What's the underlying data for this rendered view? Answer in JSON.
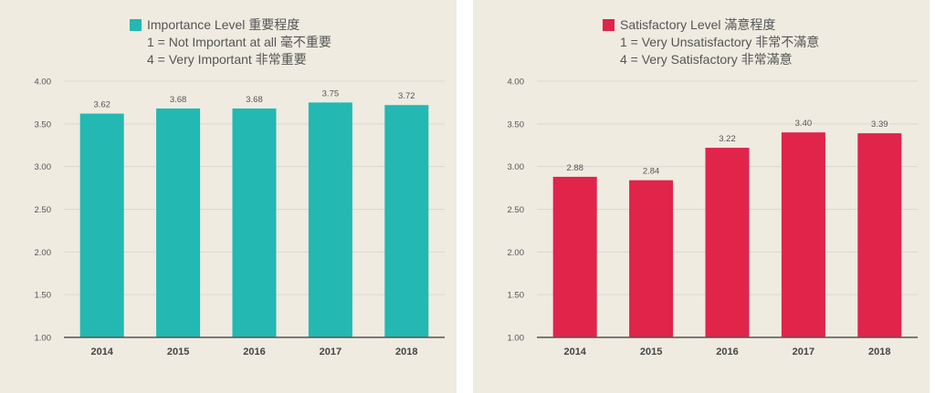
{
  "colors": {
    "background": "#efebe1",
    "grid": "#dcd8cf",
    "axis": "#555555"
  },
  "chart_data": [
    {
      "type": "bar",
      "categories": [
        "2014",
        "2015",
        "2016",
        "2017",
        "2018"
      ],
      "series": [
        {
          "name": "Importance Level 重要程度",
          "color": "#23b8b2",
          "values": [
            3.62,
            3.68,
            3.68,
            3.75,
            3.72
          ]
        }
      ],
      "data_labels": [
        "3.62",
        "3.68",
        "3.68",
        "3.75",
        "3.72"
      ],
      "y_ticks": [
        "4.00",
        "3.50",
        "3.00",
        "2.50",
        "2.00",
        "1.50",
        "1.00"
      ],
      "y_tick_values": [
        4.0,
        3.5,
        3.0,
        2.5,
        2.0,
        1.5,
        1.0
      ],
      "ylim": [
        1.0,
        4.0
      ],
      "grid": true,
      "legend_position": "top",
      "legend_lines": [
        "1 = Not Important at all 毫不重要",
        "4 = Very Important 非常重要"
      ]
    },
    {
      "type": "bar",
      "categories": [
        "2014",
        "2015",
        "2016",
        "2017",
        "2018"
      ],
      "series": [
        {
          "name": "Satisfactory Level 滿意程度",
          "color": "#e0244a",
          "values": [
            2.88,
            2.84,
            3.22,
            3.4,
            3.39
          ]
        }
      ],
      "data_labels": [
        "2.88",
        "2.84",
        "3.22",
        "3.40",
        "3.39"
      ],
      "y_ticks": [
        "4.00",
        "3.50",
        "3.00",
        "2.50",
        "2.00",
        "1.50",
        "1.00"
      ],
      "y_tick_values": [
        4.0,
        3.5,
        3.0,
        2.5,
        2.0,
        1.5,
        1.0
      ],
      "ylim": [
        1.0,
        4.0
      ],
      "grid": true,
      "legend_position": "top",
      "legend_lines": [
        "1 = Very Unsatisfactory 非常不滿意",
        "4 = Very Satisfactory 非常滿意"
      ]
    }
  ]
}
